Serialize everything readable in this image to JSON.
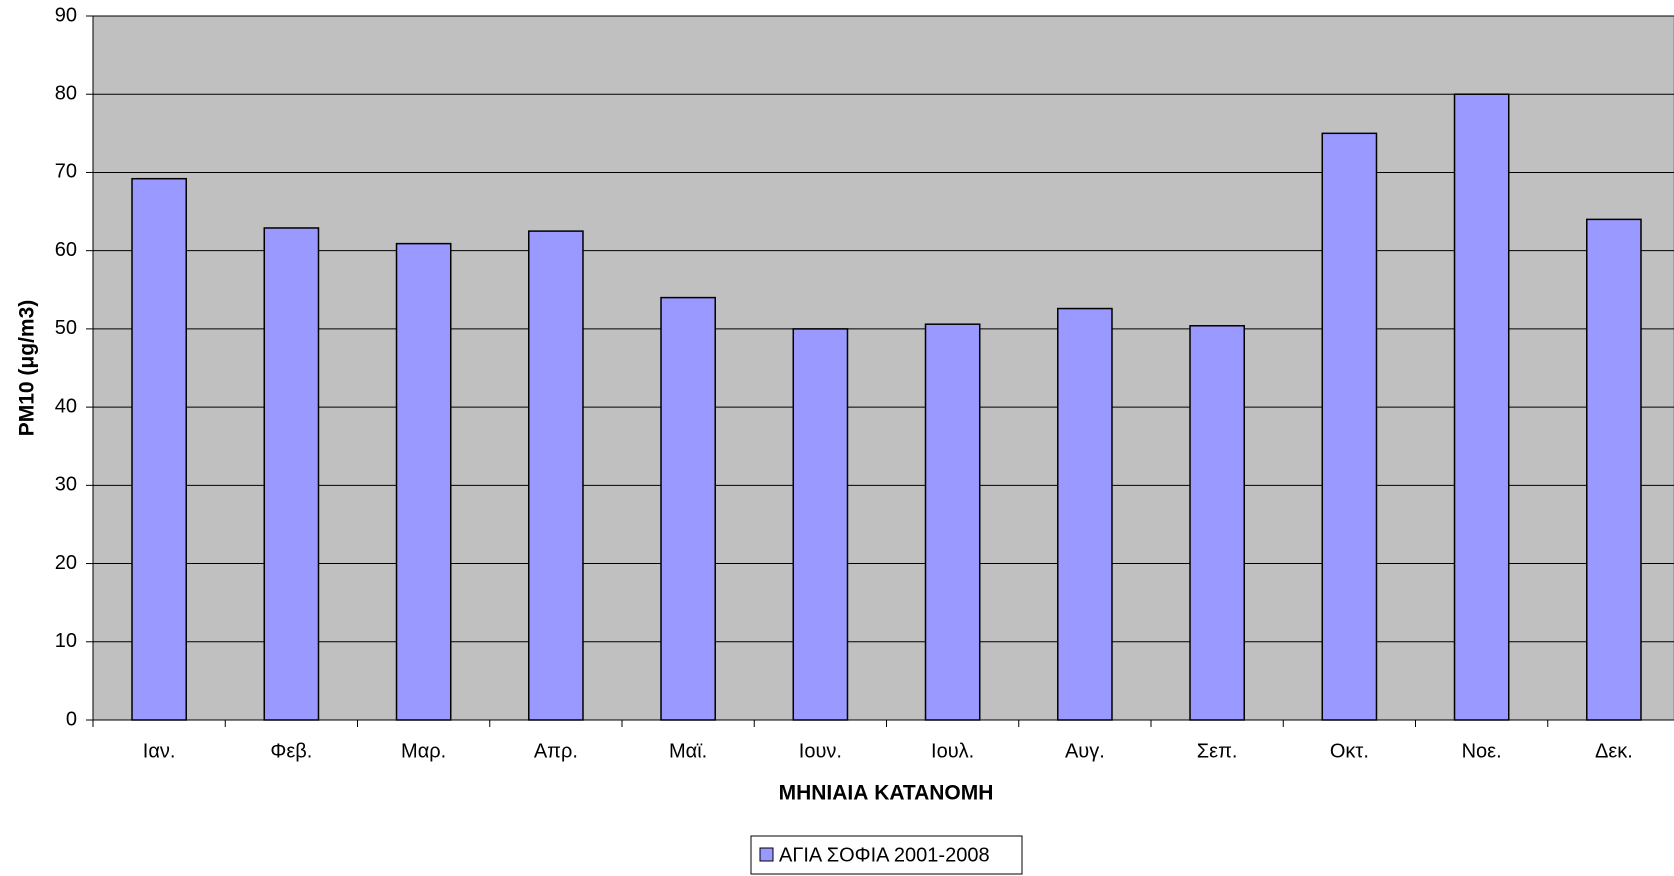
{
  "chart_data": {
    "type": "bar",
    "categories": [
      "Ιαν.",
      "Φεβ.",
      "Μαρ.",
      "Απρ.",
      "Μαϊ.",
      "Ιουν.",
      "Ιουλ.",
      "Αυγ.",
      "Σεπ.",
      "Οκτ.",
      "Νοε.",
      "Δεκ."
    ],
    "series": [
      {
        "name": "ΑΓΙΑ ΣΟΦΙΑ 2001-2008",
        "color": "#9999ff",
        "values": [
          69.2,
          62.9,
          60.9,
          62.5,
          54,
          50,
          50.6,
          52.6,
          50.4,
          75,
          80,
          64
        ]
      }
    ],
    "ylim": [
      0,
      90
    ],
    "yticks": [
      0,
      10,
      20,
      30,
      40,
      50,
      60,
      70,
      80,
      90
    ],
    "y_label": "PM10 (μg/m3)",
    "x_label": "ΜΗΝΙΑΙΑ ΚΑΤΑΝΟΜΗ",
    "grid": true,
    "legend": "bottom",
    "plot_background": "#c0c0c0"
  }
}
